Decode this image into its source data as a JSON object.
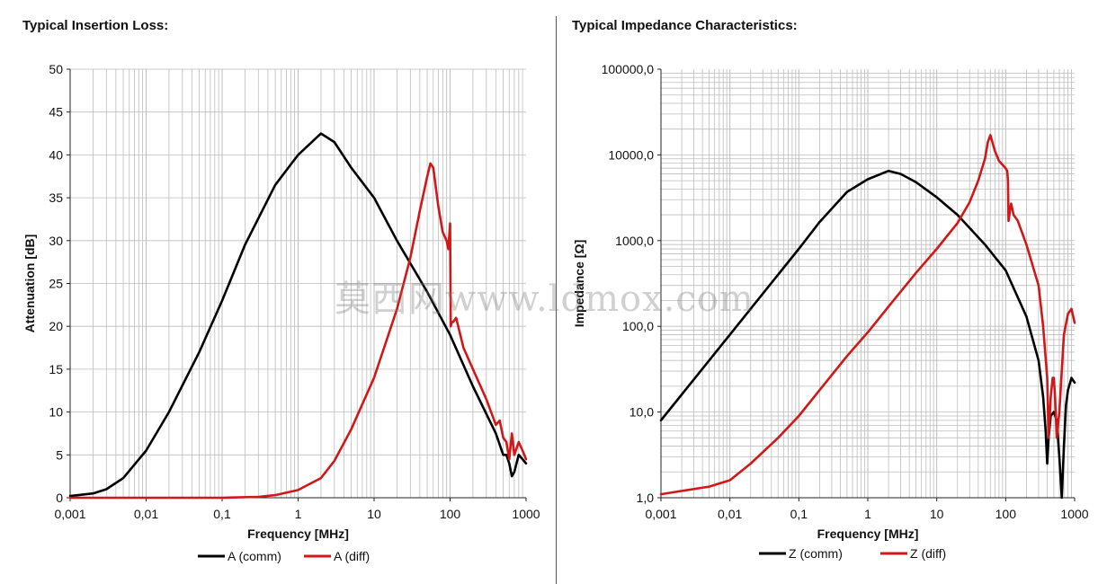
{
  "panels": {
    "left_title": "Typical Insertion Loss:",
    "right_title": "Typical Impedance Characteristics:"
  },
  "watermark": "莫西网www.ldmox.com",
  "colors": {
    "comm": "#000000",
    "diff": "#d01818",
    "grid": "#bdbdbd"
  },
  "chart_data": [
    {
      "type": "line",
      "title": "Typical Insertion Loss:",
      "xlabel": "Frequency [MHz]",
      "ylabel": "Attenuation [dB]",
      "x_scale": "log",
      "xlim": [
        0.001,
        1000
      ],
      "ylim": [
        0,
        50
      ],
      "x_ticks": [
        "0,001",
        "0,01",
        "0,1",
        "1",
        "10",
        "100",
        "1000"
      ],
      "y_ticks": [
        "0",
        "5",
        "10",
        "15",
        "20",
        "25",
        "30",
        "35",
        "40",
        "45",
        "50"
      ],
      "grid": true,
      "legend_position": "bottom",
      "series": [
        {
          "name": "A (comm)",
          "x": [
            0.001,
            0.002,
            0.003,
            0.005,
            0.01,
            0.02,
            0.05,
            0.1,
            0.2,
            0.5,
            1,
            2,
            3,
            5,
            10,
            20,
            50,
            100,
            200,
            400,
            500,
            550,
            600,
            650,
            700,
            800,
            900,
            1000
          ],
          "y": [
            0.2,
            0.5,
            1.0,
            2.3,
            5.5,
            10.0,
            17.0,
            23.0,
            29.5,
            36.5,
            40.0,
            42.5,
            41.5,
            38.5,
            35.0,
            30.0,
            24.0,
            19.0,
            13.0,
            7.5,
            5.0,
            5.0,
            4.0,
            2.5,
            3.0,
            5.0,
            4.5,
            4.0
          ]
        },
        {
          "name": "A (diff)",
          "x": [
            0.001,
            0.01,
            0.1,
            0.3,
            0.5,
            1,
            2,
            3,
            5,
            10,
            20,
            30,
            40,
            50,
            55,
            60,
            70,
            80,
            90,
            95,
            100,
            102,
            105,
            110,
            120,
            150,
            200,
            300,
            400,
            450,
            500,
            550,
            600,
            650,
            700,
            800,
            900,
            1000
          ],
          "y": [
            0.0,
            0.0,
            0.0,
            0.1,
            0.3,
            0.9,
            2.3,
            4.3,
            8.0,
            14.0,
            22.0,
            28.0,
            33.5,
            37.5,
            39.0,
            38.5,
            34.0,
            31.0,
            30.0,
            29.0,
            32.0,
            20.0,
            20.5,
            20.5,
            21.0,
            17.5,
            15.0,
            11.5,
            8.5,
            9.0,
            7.0,
            6.5,
            4.5,
            7.5,
            5.0,
            6.5,
            5.5,
            4.5
          ]
        }
      ]
    },
    {
      "type": "line",
      "title": "Typical Impedance Characteristics:",
      "xlabel": "Frequency  [MHz]",
      "ylabel": "Impedance [Ω]",
      "x_scale": "log",
      "y_scale": "log",
      "xlim": [
        0.001,
        1000
      ],
      "ylim": [
        1,
        100000
      ],
      "x_ticks": [
        "0,001",
        "0,01",
        "0,1",
        "1",
        "10",
        "100",
        "1000"
      ],
      "y_ticks": [
        "1,0",
        "10,0",
        "100,0",
        "1000,0",
        "10000,0",
        "100000,0"
      ],
      "grid": true,
      "legend_position": "bottom",
      "series": [
        {
          "name": "Z  (comm)",
          "x": [
            0.001,
            0.003,
            0.01,
            0.03,
            0.1,
            0.2,
            0.5,
            1,
            2,
            3,
            5,
            10,
            20,
            50,
            100,
            200,
            300,
            350,
            380,
            400,
            420,
            450,
            500,
            550,
            600,
            650,
            700,
            750,
            800,
            900,
            1000
          ],
          "y": [
            8,
            24,
            80,
            240,
            800,
            1650,
            3700,
            5200,
            6500,
            6000,
            4800,
            3200,
            2000,
            900,
            450,
            130,
            40,
            15,
            6,
            2.5,
            5,
            9,
            10,
            8,
            3,
            1,
            4,
            12,
            18,
            25,
            22
          ]
        },
        {
          "name": "Z (diff)",
          "x": [
            0.001,
            0.002,
            0.005,
            0.01,
            0.02,
            0.05,
            0.1,
            0.2,
            0.5,
            1,
            2,
            5,
            10,
            20,
            30,
            40,
            50,
            55,
            60,
            70,
            80,
            100,
            105,
            108,
            110,
            115,
            120,
            130,
            150,
            200,
            300,
            350,
            400,
            420,
            450,
            480,
            500,
            520,
            550,
            600,
            650,
            700,
            800,
            900,
            1000
          ],
          "y": [
            1.1,
            1.2,
            1.35,
            1.6,
            2.5,
            5,
            9,
            18,
            45,
            85,
            170,
            420,
            800,
            1600,
            2800,
            5000,
            9000,
            14000,
            17000,
            11000,
            8500,
            7000,
            6500,
            5000,
            1700,
            2200,
            2700,
            2000,
            1700,
            900,
            300,
            100,
            25,
            5,
            15,
            25,
            25,
            15,
            5,
            10,
            30,
            80,
            140,
            160,
            110
          ]
        }
      ]
    }
  ]
}
